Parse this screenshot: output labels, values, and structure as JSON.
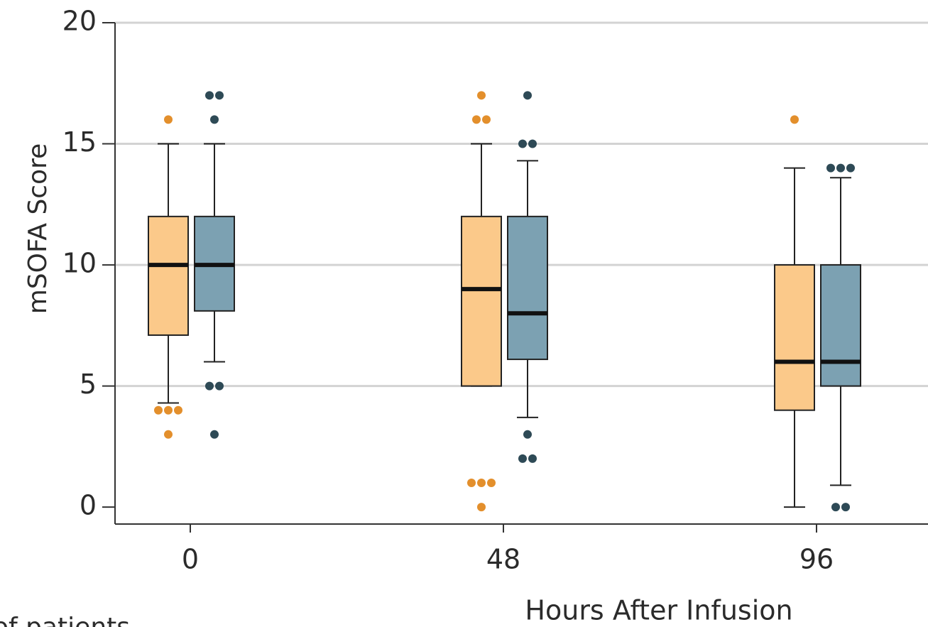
{
  "chart_data": {
    "type": "box",
    "x_label": "Hours After Infusion",
    "y_label": "mSOFA Score",
    "footnote": "of patients",
    "categories": [
      "0",
      "48",
      "96"
    ],
    "ylim": [
      -0.7,
      20
    ],
    "yticks": [
      0,
      5,
      10,
      15,
      20
    ],
    "grid": true,
    "series": [
      {
        "color": "#fbc98a",
        "outlier_color": "#e38f2c",
        "boxes": [
          {
            "low": 4.3,
            "q1": 7.1,
            "median": 10,
            "q3": 12,
            "high": 15,
            "outliers": [
              16,
              4,
              4,
              4,
              3
            ]
          },
          {
            "low": 5,
            "q1": 5,
            "median": 9,
            "q3": 12,
            "high": 15,
            "outliers": [
              17,
              16,
              16,
              1,
              1,
              1,
              0
            ]
          },
          {
            "low": 0,
            "q1": 4,
            "median": 6,
            "q3": 10,
            "high": 14,
            "outliers": [
              16
            ]
          }
        ]
      },
      {
        "color": "#7ca1b2",
        "outlier_color": "#2e4a56",
        "boxes": [
          {
            "low": 6,
            "q1": 8.1,
            "median": 10,
            "q3": 12,
            "high": 15,
            "outliers": [
              17,
              17,
              16,
              5,
              5,
              3
            ]
          },
          {
            "low": 3.7,
            "q1": 6.1,
            "median": 8,
            "q3": 12,
            "high": 14.3,
            "outliers": [
              17,
              15,
              15,
              3,
              2,
              2
            ]
          },
          {
            "low": 0.9,
            "q1": 5,
            "median": 6,
            "q3": 10,
            "high": 13.6,
            "outliers": [
              14,
              14,
              14,
              0,
              0
            ]
          }
        ]
      }
    ]
  }
}
